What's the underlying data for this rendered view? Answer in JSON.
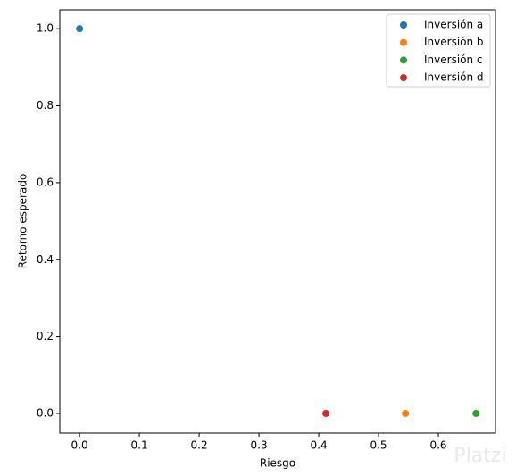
{
  "chart_data": {
    "type": "scatter",
    "xlabel": "Riesgo",
    "ylabel": "Retorno esperado",
    "series": [
      {
        "name": "Inversión a",
        "color": "#1f77b4",
        "x": [
          0.0
        ],
        "values": [
          1.0
        ]
      },
      {
        "name": "Inversión b",
        "color": "#ff7f0e",
        "x": [
          0.545
        ],
        "values": [
          0.0
        ]
      },
      {
        "name": "Inversión c",
        "color": "#2ca02c",
        "x": [
          0.663
        ],
        "values": [
          0.0
        ]
      },
      {
        "name": "Inversión d",
        "color": "#d62728",
        "x": [
          0.412
        ],
        "values": [
          0.0
        ]
      }
    ],
    "xlim": [
      -0.033,
      0.6955
    ],
    "xticks": [
      {
        "value": 0,
        "label": "0.0"
      },
      0.1,
      0.2,
      0.3,
      0.4,
      0.5,
      0.6
    ],
    "ylim": [
      -0.051,
      1.049
    ],
    "yticks": [
      {
        "value": 0,
        "label": "0.0"
      },
      0.2,
      0.4,
      0.6,
      0.8,
      {
        "value": 1,
        "label": "1.0"
      }
    ],
    "legend": "upper right",
    "watermark": "Platzi"
  }
}
